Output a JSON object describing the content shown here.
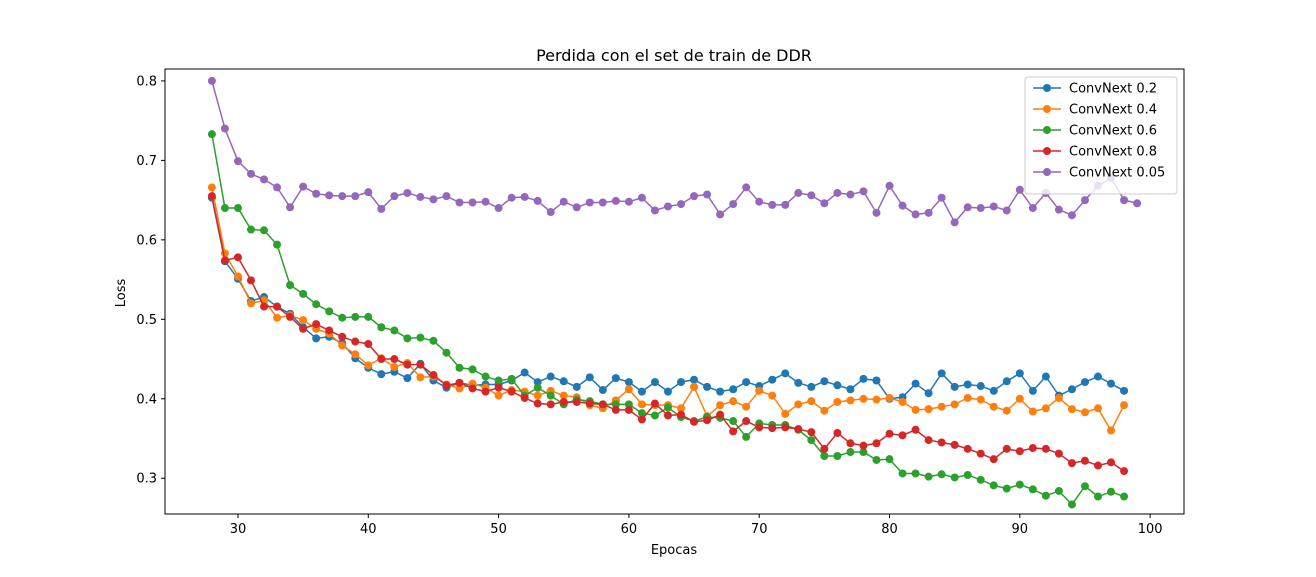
{
  "chart_data": {
    "type": "line",
    "title": "Perdida con el set de train de DDR",
    "xlabel": "Epocas",
    "ylabel": "Loss",
    "xlim": [
      24.4,
      102.6
    ],
    "ylim": [
      0.255,
      0.815
    ],
    "xticks": [
      30,
      40,
      50,
      60,
      70,
      80,
      90,
      100
    ],
    "yticks": [
      0.3,
      0.4,
      0.5,
      0.6,
      0.7,
      0.8
    ],
    "grid": false,
    "legend_position": "top-right",
    "x_start": 28,
    "series": [
      {
        "name": "ConvNext 0.2",
        "color": "#1f77b4",
        "values": [
          0.653,
          0.573,
          0.551,
          0.523,
          0.528,
          0.516,
          0.507,
          0.49,
          0.476,
          0.478,
          0.47,
          0.451,
          0.439,
          0.431,
          0.434,
          0.426,
          0.444,
          0.423,
          0.414,
          0.42,
          0.417,
          0.418,
          0.418,
          0.423,
          0.433,
          0.421,
          0.428,
          0.422,
          0.415,
          0.427,
          0.411,
          0.426,
          0.421,
          0.409,
          0.421,
          0.409,
          0.421,
          0.424,
          0.415,
          0.409,
          0.412,
          0.421,
          0.416,
          0.424,
          0.432,
          0.42,
          0.415,
          0.422,
          0.417,
          0.412,
          0.425,
          0.423,
          0.4,
          0.402,
          0.419,
          0.407,
          0.432,
          0.415,
          0.418,
          0.416,
          0.41,
          0.422,
          0.432,
          0.41,
          0.428,
          0.404,
          0.412,
          0.421,
          0.428,
          0.419,
          0.41
        ]
      },
      {
        "name": "ConvNext 0.4",
        "color": "#ff7f0e",
        "values": [
          0.666,
          0.583,
          0.554,
          0.52,
          0.524,
          0.502,
          0.505,
          0.499,
          0.488,
          0.482,
          0.467,
          0.456,
          0.442,
          0.451,
          0.44,
          0.445,
          0.427,
          0.428,
          0.418,
          0.413,
          0.419,
          0.414,
          0.404,
          0.411,
          0.409,
          0.404,
          0.41,
          0.404,
          0.402,
          0.392,
          0.388,
          0.398,
          0.412,
          0.393,
          0.392,
          0.392,
          0.388,
          0.415,
          0.378,
          0.392,
          0.397,
          0.39,
          0.41,
          0.404,
          0.381,
          0.393,
          0.397,
          0.385,
          0.396,
          0.398,
          0.4,
          0.399,
          0.401,
          0.396,
          0.386,
          0.387,
          0.39,
          0.393,
          0.401,
          0.399,
          0.39,
          0.385,
          0.4,
          0.384,
          0.388,
          0.401,
          0.387,
          0.383,
          0.388,
          0.36,
          0.392
        ]
      },
      {
        "name": "ConvNext 0.6",
        "color": "#2ca02c",
        "values": [
          0.733,
          0.64,
          0.64,
          0.613,
          0.612,
          0.594,
          0.543,
          0.532,
          0.519,
          0.51,
          0.502,
          0.503,
          0.503,
          0.49,
          0.486,
          0.476,
          0.477,
          0.473,
          0.458,
          0.439,
          0.437,
          0.428,
          0.423,
          0.425,
          0.404,
          0.414,
          0.404,
          0.393,
          0.399,
          0.397,
          0.393,
          0.393,
          0.393,
          0.382,
          0.379,
          0.389,
          0.377,
          0.372,
          0.377,
          0.376,
          0.372,
          0.352,
          0.369,
          0.367,
          0.367,
          0.361,
          0.348,
          0.328,
          0.328,
          0.333,
          0.333,
          0.323,
          0.324,
          0.306,
          0.306,
          0.302,
          0.305,
          0.301,
          0.304,
          0.298,
          0.291,
          0.287,
          0.292,
          0.286,
          0.278,
          0.284,
          0.267,
          0.29,
          0.277,
          0.283,
          0.277
        ]
      },
      {
        "name": "ConvNext 0.8",
        "color": "#d62728",
        "values": [
          0.655,
          0.574,
          0.578,
          0.549,
          0.516,
          0.516,
          0.503,
          0.488,
          0.494,
          0.486,
          0.478,
          0.472,
          0.469,
          0.45,
          0.45,
          0.443,
          0.443,
          0.43,
          0.417,
          0.42,
          0.413,
          0.409,
          0.414,
          0.409,
          0.401,
          0.394,
          0.393,
          0.396,
          0.396,
          0.394,
          0.393,
          0.386,
          0.386,
          0.374,
          0.394,
          0.379,
          0.38,
          0.371,
          0.373,
          0.38,
          0.359,
          0.372,
          0.364,
          0.363,
          0.364,
          0.362,
          0.358,
          0.337,
          0.357,
          0.344,
          0.341,
          0.344,
          0.356,
          0.354,
          0.361,
          0.348,
          0.345,
          0.342,
          0.337,
          0.331,
          0.324,
          0.337,
          0.334,
          0.338,
          0.337,
          0.331,
          0.319,
          0.322,
          0.316,
          0.32,
          0.309
        ]
      },
      {
        "name": "ConvNext 0.05",
        "color": "#9467bd",
        "values": [
          0.8,
          0.74,
          0.699,
          0.683,
          0.676,
          0.666,
          0.641,
          0.667,
          0.658,
          0.656,
          0.655,
          0.655,
          0.66,
          0.639,
          0.655,
          0.659,
          0.654,
          0.651,
          0.655,
          0.647,
          0.647,
          0.648,
          0.64,
          0.653,
          0.654,
          0.649,
          0.635,
          0.648,
          0.641,
          0.647,
          0.647,
          0.649,
          0.648,
          0.653,
          0.637,
          0.642,
          0.645,
          0.655,
          0.657,
          0.632,
          0.645,
          0.666,
          0.648,
          0.644,
          0.644,
          0.659,
          0.656,
          0.646,
          0.659,
          0.657,
          0.661,
          0.634,
          0.668,
          0.643,
          0.632,
          0.634,
          0.653,
          0.622,
          0.641,
          0.64,
          0.642,
          0.637,
          0.663,
          0.64,
          0.659,
          0.638,
          0.631,
          0.65,
          0.668,
          0.678,
          0.65,
          0.646
        ]
      }
    ]
  }
}
